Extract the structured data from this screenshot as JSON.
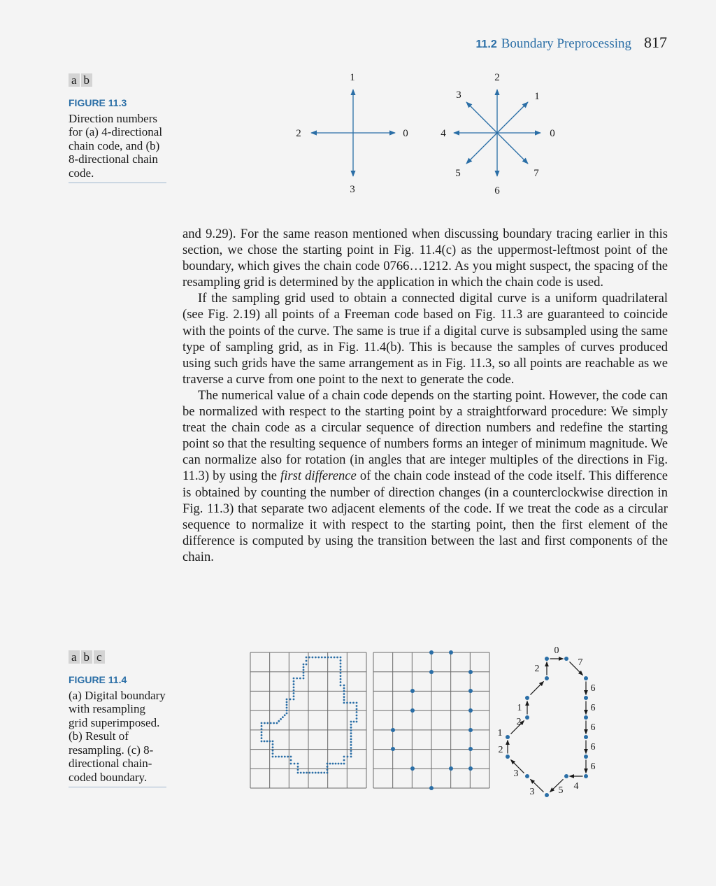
{
  "header": {
    "section_num": "11.2",
    "section_title": "Boundary Preprocessing",
    "page_number": "817"
  },
  "figure_11_3": {
    "tags": [
      "a",
      "b"
    ],
    "label": "FIGURE 11.3",
    "caption": "Direction numbers for (a) 4-directional chain code, and (b) 8-directional chain code.",
    "four_dir_labels": [
      "0",
      "1",
      "2",
      "3"
    ],
    "eight_dir_labels": [
      "0",
      "1",
      "2",
      "3",
      "4",
      "5",
      "6",
      "7"
    ]
  },
  "body": {
    "p1": "and 9.29). For the same reason mentioned when discussing boundary tracing earlier in this section, we chose the starting point in Fig. 11.4(c) as the uppermost-leftmost point of the boundary, which gives the chain code 0766…1212. As you might suspect, the spacing of the resampling grid is determined by the application in which the chain code is used.",
    "p2": "If the sampling grid used to obtain a connected digital curve is a uniform quadrilateral (see Fig. 2.19) all points of a Freeman code based on Fig. 11.3 are guaranteed to coincide with the points of the curve. The same is true if a digital curve is subsampled using the same type of sampling grid, as in Fig. 11.4(b). This is because the samples of curves produced using such grids have the same arrangement as in Fig. 11.3, so all points are reachable as we traverse a curve from one point to the next to generate the code.",
    "p3_before": "The numerical value of a chain code depends on the starting point. However, the code can be normalized with respect to the starting point by a straightforward procedure: We simply treat the chain code as a circular sequence of direction numbers and redefine the starting point so that the resulting sequence of numbers forms an integer of minimum magnitude. We can normalize also for rotation (in angles that are integer multiples of the directions in Fig. 11.3) by using the ",
    "p3_emph": "first difference",
    "p3_after": " of the chain code instead of the code itself. This difference is obtained by counting the number of direction changes (in a counterclockwise direction in Fig. 11.3) that separate two adjacent elements of the code. If we treat the code as a circular sequence to normalize it with respect to the starting point, then the first element of the difference is computed by using the transition between the last and first components of the chain."
  },
  "figure_11_4": {
    "tags": [
      "a",
      "b",
      "c"
    ],
    "label": "FIGURE 11.4",
    "caption": "(a) Digital boundary with resampling grid superimposed. (b) Result of resampling. (c) 8-directional chain-coded boundary.",
    "chain_code": [
      "0",
      "7",
      "6",
      "6",
      "6",
      "6",
      "6",
      "4",
      "5",
      "3",
      "3",
      "2",
      "1",
      "2",
      "1",
      "2"
    ]
  },
  "colors": {
    "accent": "#2a6ea6",
    "text": "#1a1a1a",
    "grid": "#6a6a6a"
  }
}
